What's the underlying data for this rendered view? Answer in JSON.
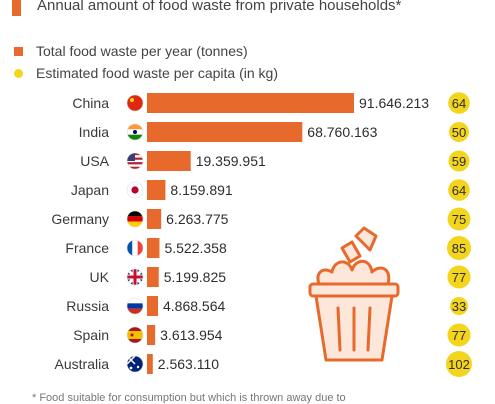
{
  "subtitle": "Annual amount of food waste from private households*",
  "legend": {
    "total": "Total food waste per year (tonnes)",
    "per_capita": "Estimated food waste per capita (in kg)"
  },
  "footnote": "* Food suitable for consumption but which is thrown away due to",
  "colors": {
    "bar": "#e8692c",
    "dot": "#f4d51e",
    "icon": "#e8692c"
  },
  "chart_data": {
    "type": "bar",
    "orientation": "horizontal",
    "categories": [
      "China",
      "India",
      "USA",
      "Japan",
      "Germany",
      "France",
      "UK",
      "Russia",
      "Spain",
      "Australia"
    ],
    "flags": [
      "china-flag-icon",
      "india-flag-icon",
      "usa-flag-icon",
      "japan-flag-icon",
      "germany-flag-icon",
      "france-flag-icon",
      "uk-flag-icon",
      "russia-flag-icon",
      "spain-flag-icon",
      "australia-flag-icon"
    ],
    "series": [
      {
        "name": "Total food waste per year (tonnes)",
        "values": [
          91646213,
          68760163,
          19359951,
          8159891,
          6263775,
          5522358,
          5199825,
          4868564,
          3613954,
          2563110
        ],
        "labels": [
          "91.646.213",
          "68.760.163",
          "19.359.951",
          "8.159.891",
          "6.263.775",
          "5.522.358",
          "5.199.825",
          "4.868.564",
          "3.613.954",
          "2.563.110"
        ]
      },
      {
        "name": "Estimated food waste per capita (in kg)",
        "values": [
          64,
          50,
          59,
          64,
          75,
          85,
          77,
          33,
          77,
          102
        ],
        "labels": [
          "64",
          "50",
          "59",
          "64",
          "75",
          "85",
          "77",
          "33",
          "77",
          "102"
        ]
      }
    ]
  }
}
